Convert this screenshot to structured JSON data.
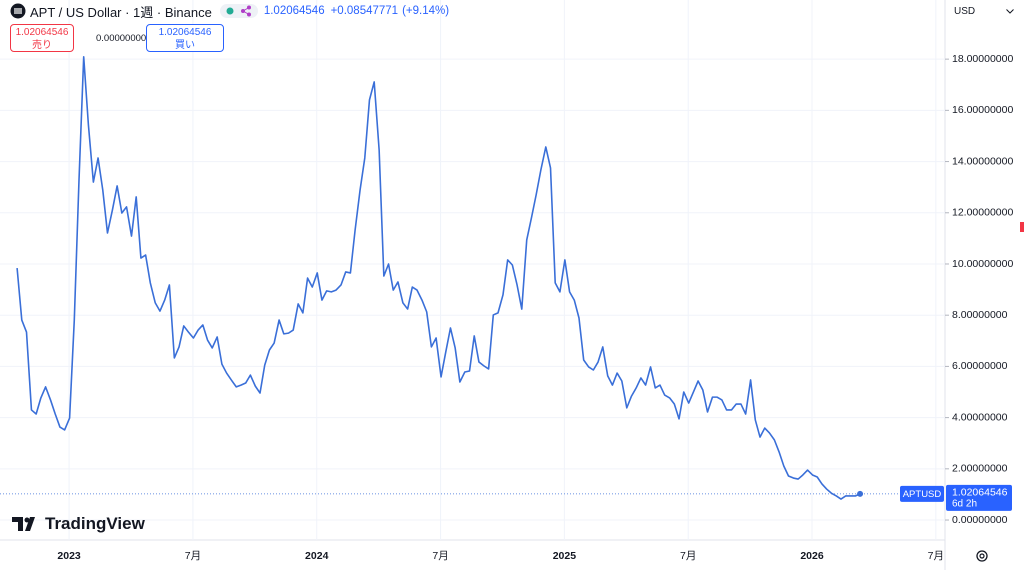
{
  "header": {
    "symbol": "APT / US Dollar · 1週 · Binance",
    "change": "+0.08547771",
    "change_pct": "(+9.14%)"
  },
  "order_panel": {
    "sell_price": "1.02064546",
    "sell_label": "売り",
    "spread": "0.00000000",
    "buy_price": "1.02064546",
    "buy_label": "買い"
  },
  "currency": "USD",
  "price_label": {
    "symbol": "APTUSD",
    "countdown": "6d 2h"
  },
  "logo": "TradingView",
  "chart_data": {
    "type": "line",
    "x": [
      2022.79,
      2022.809,
      2022.828,
      2022.848,
      2022.867,
      2022.886,
      2022.905,
      2022.925,
      2022.944,
      2022.963,
      2022.982,
      2023.002,
      2023.021,
      2023.04,
      2023.059,
      2023.078,
      2023.098,
      2023.117,
      2023.136,
      2023.155,
      2023.175,
      2023.194,
      2023.213,
      2023.232,
      2023.252,
      2023.271,
      2023.29,
      2023.309,
      2023.328,
      2023.348,
      2023.367,
      2023.386,
      2023.405,
      2023.425,
      2023.444,
      2023.463,
      2023.482,
      2023.502,
      2023.521,
      2023.54,
      2023.559,
      2023.578,
      2023.598,
      2023.617,
      2023.636,
      2023.655,
      2023.675,
      2023.694,
      2023.713,
      2023.732,
      2023.752,
      2023.771,
      2023.79,
      2023.809,
      2023.828,
      2023.848,
      2023.867,
      2023.886,
      2023.905,
      2023.925,
      2023.944,
      2023.963,
      2023.982,
      2024.002,
      2024.021,
      2024.04,
      2024.059,
      2024.078,
      2024.098,
      2024.117,
      2024.136,
      2024.155,
      2024.175,
      2024.194,
      2024.213,
      2024.232,
      2024.252,
      2024.271,
      2024.29,
      2024.309,
      2024.328,
      2024.348,
      2024.367,
      2024.386,
      2024.405,
      2024.425,
      2024.444,
      2024.463,
      2024.482,
      2024.502,
      2024.521,
      2024.54,
      2024.559,
      2024.578,
      2024.598,
      2024.617,
      2024.636,
      2024.655,
      2024.675,
      2024.694,
      2024.713,
      2024.732,
      2024.752,
      2024.771,
      2024.79,
      2024.809,
      2024.828,
      2024.848,
      2024.867,
      2024.886,
      2024.905,
      2024.925,
      2024.944,
      2024.963,
      2024.982,
      2025.002,
      2025.021,
      2025.04,
      2025.059,
      2025.078,
      2025.098,
      2025.117,
      2025.136,
      2025.155,
      2025.175,
      2025.194,
      2025.213,
      2025.232,
      2025.252,
      2025.271,
      2025.29,
      2025.309,
      2025.328,
      2025.348,
      2025.367,
      2025.386,
      2025.405,
      2025.425,
      2025.444,
      2025.463,
      2025.482,
      2025.502,
      2025.521,
      2025.54,
      2025.559,
      2025.578,
      2025.598,
      2025.617,
      2025.636,
      2025.655,
      2025.675,
      2025.694,
      2025.713,
      2025.732,
      2025.752,
      2025.771,
      2025.79,
      2025.809,
      2025.828,
      2025.848,
      2025.867,
      2025.886,
      2025.905,
      2025.925,
      2025.944,
      2025.963,
      2025.982,
      2026.002,
      2026.021,
      2026.04,
      2026.059,
      2026.078,
      2026.098,
      2026.117,
      2026.136,
      2026.155,
      2026.175,
      2026.194
    ],
    "series": [
      {
        "name": "APTUSD",
        "color": "#3a6fd8",
        "values": [
          9.84,
          7.81,
          7.34,
          4.3,
          4.14,
          4.77,
          5.2,
          4.69,
          4.14,
          3.63,
          3.52,
          3.98,
          7.81,
          13.28,
          18.09,
          15.43,
          13.2,
          14.14,
          12.89,
          11.21,
          12.11,
          13.05,
          11.99,
          12.23,
          11.09,
          12.62,
          10.23,
          10.35,
          9.26,
          8.48,
          8.16,
          8.59,
          9.18,
          6.33,
          6.76,
          7.58,
          7.34,
          7.11,
          7.42,
          7.62,
          7.03,
          6.72,
          7.15,
          6.09,
          5.74,
          5.47,
          5.2,
          5.27,
          5.35,
          5.66,
          5.23,
          4.96,
          6.05,
          6.64,
          6.91,
          7.81,
          7.27,
          7.3,
          7.42,
          8.44,
          8.09,
          9.45,
          9.1,
          9.65,
          8.59,
          8.95,
          8.91,
          8.98,
          9.18,
          9.69,
          9.65,
          11.33,
          12.89,
          14.14,
          16.41,
          17.11,
          14.45,
          9.53,
          10.0,
          8.98,
          9.3,
          8.48,
          8.24,
          9.1,
          8.98,
          8.59,
          8.13,
          6.76,
          7.11,
          5.59,
          6.56,
          7.5,
          6.72,
          5.39,
          5.78,
          5.82,
          7.19,
          6.17,
          6.02,
          5.9,
          8.01,
          8.09,
          8.79,
          10.16,
          9.96,
          9.18,
          8.24,
          10.94,
          11.8,
          12.7,
          13.67,
          14.57,
          13.75,
          9.26,
          8.91,
          10.16,
          8.91,
          8.59,
          7.89,
          6.25,
          5.98,
          5.86,
          6.17,
          6.76,
          5.63,
          5.27,
          5.74,
          5.43,
          4.38,
          4.84,
          5.16,
          5.55,
          5.27,
          5.98,
          5.16,
          5.27,
          4.88,
          4.77,
          4.53,
          3.95,
          5.0,
          4.57,
          5.0,
          5.43,
          5.08,
          4.22,
          4.8,
          4.8,
          4.69,
          4.3,
          4.3,
          4.53,
          4.53,
          4.14,
          5.47,
          3.91,
          3.24,
          3.59,
          3.4,
          3.13,
          2.66,
          2.11,
          1.72,
          1.64,
          1.6,
          1.76,
          1.95,
          1.76,
          1.68,
          1.41,
          1.21,
          1.05,
          0.94,
          0.82,
          0.94,
          0.94,
          0.94,
          1.02064546
        ]
      }
    ],
    "xlim": [
      2022.721,
      2026.537
    ],
    "xticks": [
      2023,
      {
        "value": 2023.5,
        "label": "7月"
      },
      2024,
      {
        "value": 2024.5,
        "label": "7月"
      },
      2025,
      {
        "value": 2025.5,
        "label": "7月"
      },
      2026,
      {
        "value": 2026.5,
        "label": "7月"
      }
    ],
    "ylim": [
      -0.78,
      20.31
    ],
    "yticks": [
      {
        "value": 0,
        "label": "0.00000000"
      },
      {
        "value": 2,
        "label": "2.00000000"
      },
      {
        "value": 4,
        "label": "4.00000000"
      },
      {
        "value": 6,
        "label": "6.00000000"
      },
      {
        "value": 8,
        "label": "8.00000000"
      },
      {
        "value": 10,
        "label": "10.00000000"
      },
      {
        "value": 12,
        "label": "12.00000000"
      },
      {
        "value": 14,
        "label": "14.00000000"
      },
      {
        "value": 16,
        "label": "16.00000000"
      },
      {
        "value": 18,
        "label": "18.00000000"
      }
    ],
    "grid": true
  }
}
